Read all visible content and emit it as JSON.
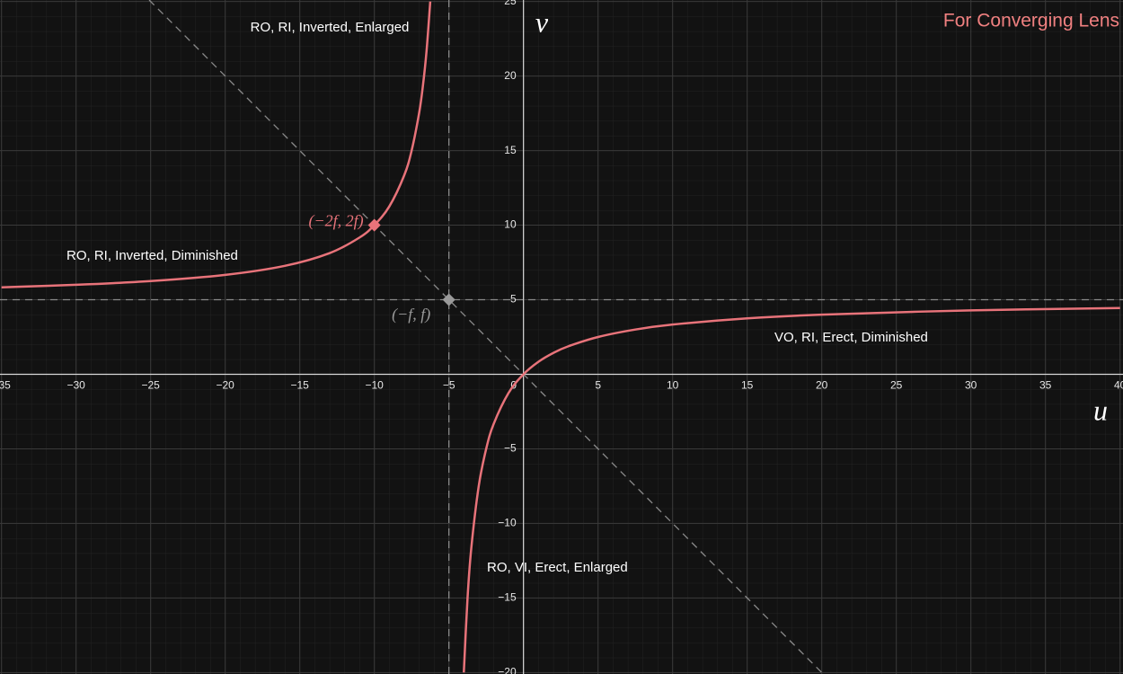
{
  "chart_data": {
    "type": "line",
    "title": "For Converging Lens",
    "x_label": "u",
    "y_label": "v",
    "xlim": [
      -35.1,
      40.2
    ],
    "ylim": [
      -20.1,
      25.1
    ],
    "xticks": [
      {
        "value": -35,
        "label": "−35"
      },
      {
        "value": -30,
        "label": "−30"
      },
      {
        "value": -25,
        "label": "−25"
      },
      {
        "value": -20,
        "label": "−20"
      },
      {
        "value": -15,
        "label": "−15"
      },
      {
        "value": -10,
        "label": "−10"
      },
      {
        "value": -5,
        "label": "−5"
      },
      0,
      5,
      10,
      15,
      20,
      25,
      30,
      35,
      40
    ],
    "yticks": [
      {
        "value": -20,
        "label": "−20"
      },
      {
        "value": -15,
        "label": "−15"
      },
      {
        "value": -10,
        "label": "−10"
      },
      {
        "value": -5,
        "label": "−5"
      },
      5,
      10,
      15,
      20,
      25
    ],
    "grid": true,
    "series": [
      {
        "color": "#e8737a",
        "x": [
          -35,
          -30,
          -25,
          -20,
          -16,
          -13,
          -11,
          -10,
          -9,
          -8,
          -7.5,
          -7,
          -6.75,
          -6.5,
          -6.25,
          -5,
          -4,
          -3.75,
          -3.5,
          -3,
          -2.5,
          -2,
          -1,
          0,
          1,
          2,
          3,
          5,
          7.5,
          10,
          15,
          20,
          30,
          40
        ],
        "values": [
          5.833,
          6,
          6.25,
          6.667,
          7.273,
          8.125,
          9.167,
          10,
          11.25,
          13.333,
          15,
          17.5,
          19.286,
          21.667,
          25,
          null,
          -20,
          -15,
          -11.667,
          -7.5,
          -5,
          -3.333,
          -1.25,
          0,
          0.833,
          1.429,
          1.875,
          2.5,
          3,
          3.333,
          3.75,
          4,
          4.286,
          4.444
        ]
      }
    ],
    "guides": [
      {
        "x": [
          -25.1,
          20.1
        ],
        "values": [
          25.1,
          -20.1
        ]
      },
      {
        "x": [
          -5,
          -5
        ],
        "values": [
          25.1,
          -20.1
        ]
      },
      {
        "x": [
          -35.1,
          40.2
        ],
        "values": [
          5,
          5
        ]
      }
    ],
    "points": [
      {
        "x": -10,
        "y": 10,
        "label": "(−2f, 2f)",
        "color": "#e8737a"
      },
      {
        "x": -5,
        "y": 5,
        "label": "(−f, f)",
        "color": "#9a9a9a"
      }
    ],
    "annotations": [
      "RO, RI, Inverted, Enlarged",
      "RO, RI, Inverted, Diminished",
      "VO, RI, Erect, Diminished",
      "RO, VI, Erect, Enlarged"
    ]
  }
}
